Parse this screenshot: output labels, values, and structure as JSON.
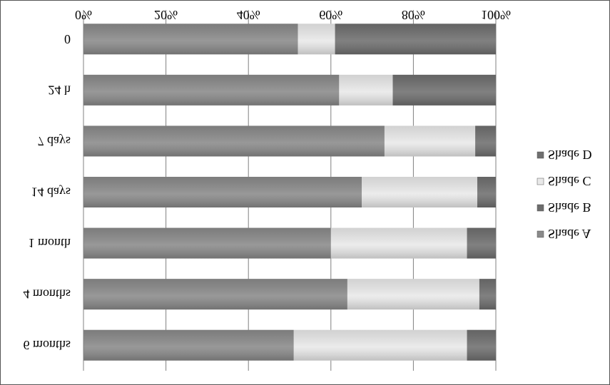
{
  "chart_data": {
    "type": "bar",
    "orientation": "horizontal",
    "stacked": "percent",
    "categories": [
      "0",
      "24 h",
      "7 days",
      "14 days",
      "1 month",
      "4 months",
      "6 months"
    ],
    "series": [
      {
        "name": "Shade A",
        "values": [
          52,
          62,
          73,
          67.5,
          60,
          64,
          51
        ]
      },
      {
        "name": "Shade B",
        "values": [
          0,
          0,
          0,
          0,
          0,
          0,
          0
        ]
      },
      {
        "name": "Shade C",
        "values": [
          9,
          13,
          22,
          28,
          33,
          32,
          42
        ]
      },
      {
        "name": "Shade D",
        "values": [
          39,
          25,
          5,
          4.5,
          7,
          4,
          7
        ]
      }
    ],
    "xlim": [
      0,
      100
    ],
    "xticks": [
      "0%",
      "20%",
      "40%",
      "60%",
      "80%",
      "100%"
    ],
    "grid": true,
    "legend_position": "right",
    "colors": {
      "Shade A": "#8a8a8a",
      "Shade B": "#6c6c6c",
      "Shade C": "#e9e9e9",
      "Shade D": "#6f6f6f"
    }
  }
}
